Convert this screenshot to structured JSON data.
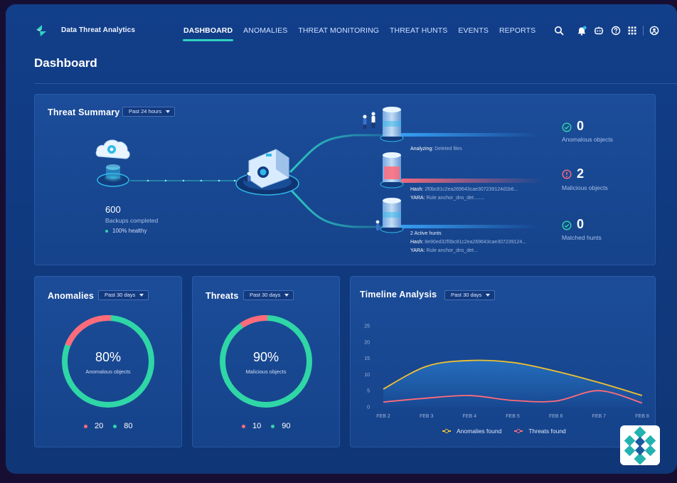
{
  "app": {
    "brand": "Data Threat Analytics"
  },
  "nav": {
    "items": [
      "DASHBOARD",
      "ANOMALIES",
      "THREAT MONITORING",
      "THREAT HUNTS",
      "EVENTS",
      "REPORTS"
    ],
    "active": "DASHBOARD"
  },
  "toolbar": {
    "icons": [
      "search-icon",
      "notifications-icon",
      "assistant-icon",
      "help-icon",
      "apps-grid-icon",
      "user-account-icon"
    ]
  },
  "page": {
    "title": "Dashboard"
  },
  "summary": {
    "title": "Threat Summary",
    "range": "Past 24 hours",
    "backups": {
      "count": "600",
      "label": "Backups completed",
      "health": "100% healthy"
    },
    "lanes": [
      {
        "status": "Analyzing:",
        "detail": "Deleted files"
      },
      {
        "hash_key": "Hash:",
        "hash": "2f0bc81c2ea269643cae307239124d1b6...",
        "yara_key": "YARA:",
        "yara": "Rule anchor_dns_det........"
      },
      {
        "status": "2 Active hunts",
        "hash_key": "Hash:",
        "hash": "8e90ed32f0bc81c2ea269643cae307239124...",
        "yara_key": "YARA:",
        "yara": "Rule anchor_dns_det..."
      }
    ],
    "stats": [
      {
        "value": "0",
        "label": "Anomalous objects",
        "color": "#2fd6a6"
      },
      {
        "value": "2",
        "label": "Malicious objects",
        "color": "#ff6b7a"
      },
      {
        "value": "0",
        "label": "Matched hunts",
        "color": "#2fd6a6"
      }
    ]
  },
  "anomalies": {
    "title": "Anomalies",
    "range": "Past 30 days",
    "percent": "80%",
    "fraction": 0.8,
    "center_label": "Anomalous objects",
    "legend": [
      {
        "value": "20",
        "color": "#ff6b7a"
      },
      {
        "value": "80",
        "color": "#2fd6a6"
      }
    ]
  },
  "threats": {
    "title": "Threats",
    "range": "Past 30 days",
    "percent": "90%",
    "fraction": 0.9,
    "center_label": "Malicious objects",
    "legend": [
      {
        "value": "10",
        "color": "#ff6b7a"
      },
      {
        "value": "90",
        "color": "#2fd6a6"
      }
    ]
  },
  "timeline": {
    "title": "Timeline Analysis",
    "range": "Past 30 days",
    "legend": [
      {
        "name": "Anomalies found",
        "color": "#f2c22e"
      },
      {
        "name": "Threats found",
        "color": "#ff6b7a"
      }
    ]
  },
  "chart_data": {
    "type": "area",
    "categories": [
      "FEB 2",
      "FEB 3",
      "FEB 4",
      "FEB 5",
      "FEB 6",
      "FEB 7",
      "FEB 8"
    ],
    "series": [
      {
        "name": "Anomalies found",
        "values": [
          5.5,
          12.5,
          14.3,
          13.7,
          11,
          7.5,
          3.5
        ],
        "color": "#f2c22e"
      },
      {
        "name": "Threats found",
        "values": [
          1.5,
          2.7,
          3.5,
          2,
          1.8,
          5,
          1.2
        ],
        "color": "#ff6b7a"
      }
    ],
    "yticks": [
      0,
      5,
      10,
      15,
      20,
      25
    ],
    "ylim": [
      0,
      25
    ],
    "grid": false,
    "legend_position": "bottom-center"
  }
}
